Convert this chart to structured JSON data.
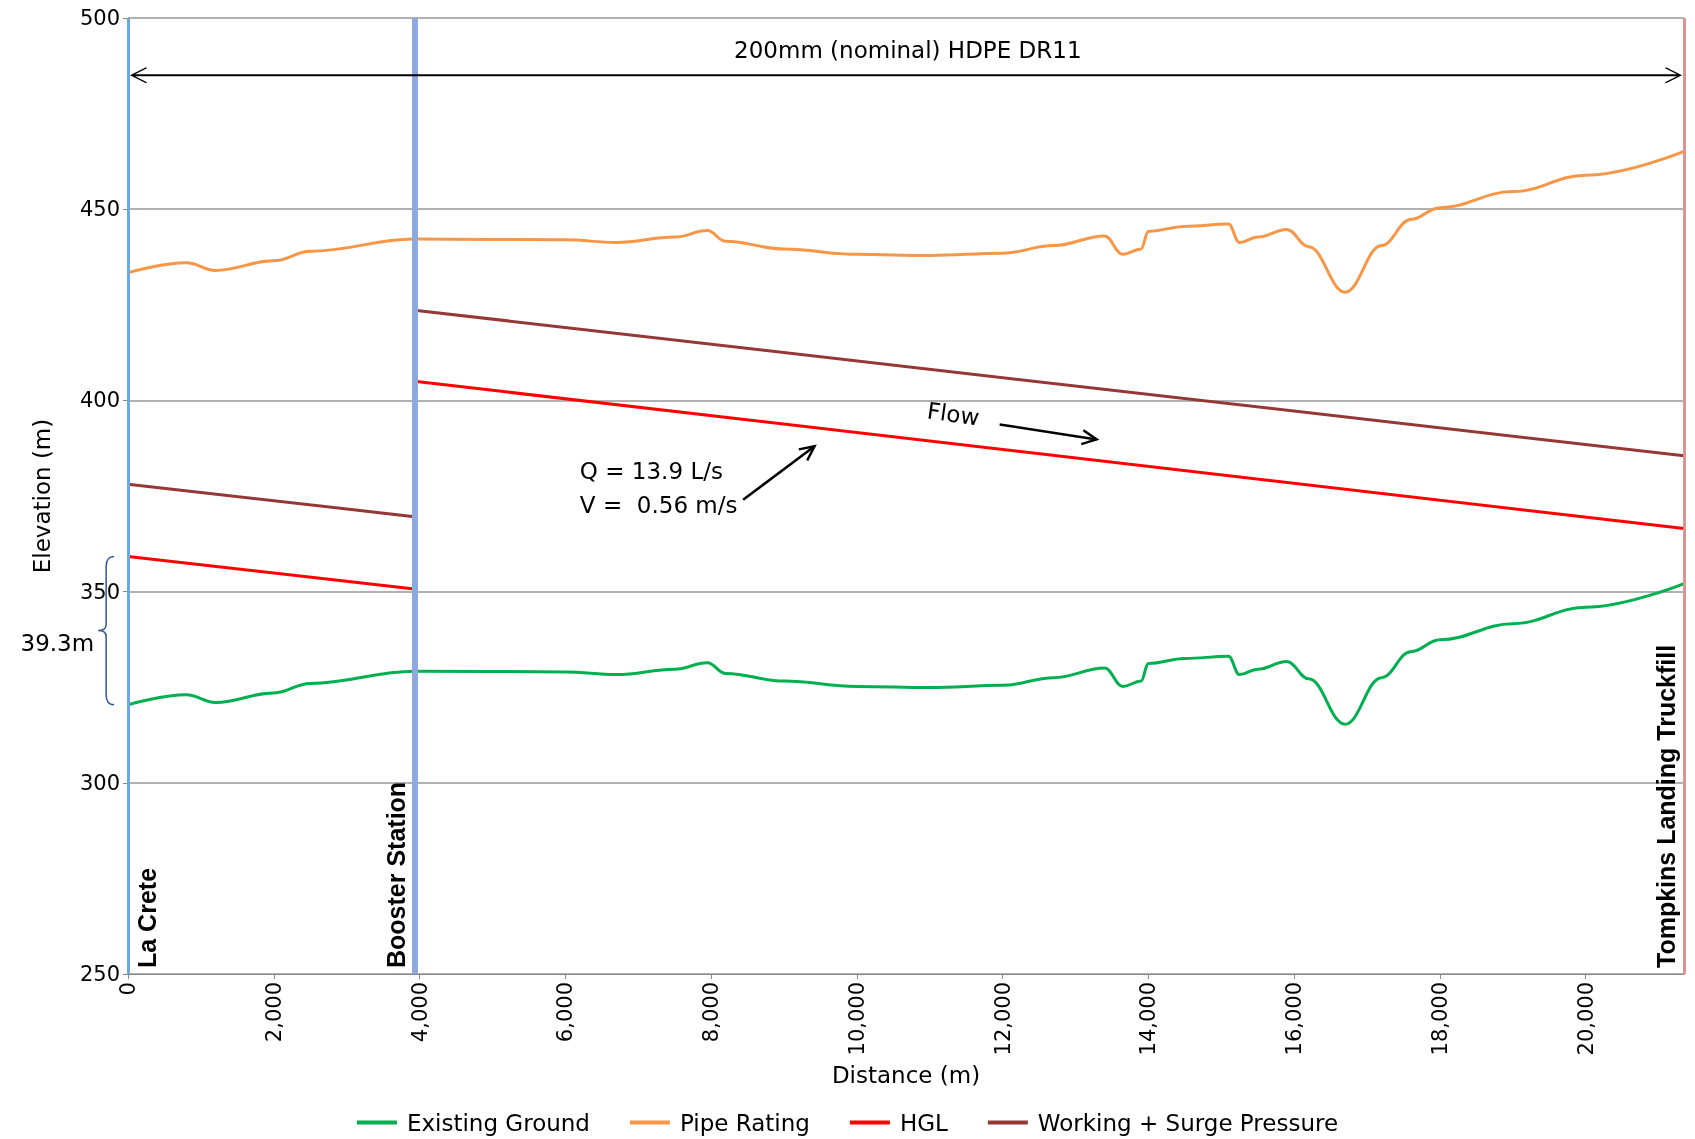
{
  "chart_data": {
    "type": "line",
    "xlabel": "Distance (m)",
    "ylabel": "Elevation (m)",
    "xlim": [
      0,
      21350
    ],
    "xticks": [
      {
        "value": 0,
        "label": "0"
      },
      {
        "value": 2000,
        "label": "2,000"
      },
      {
        "value": 4000,
        "label": "4,000"
      },
      {
        "value": 6000,
        "label": "6,000"
      },
      {
        "value": 8000,
        "label": "8,000"
      },
      {
        "value": 10000,
        "label": "10,000"
      },
      {
        "value": 12000,
        "label": "12,000"
      },
      {
        "value": 14000,
        "label": "14,000"
      },
      {
        "value": 16000,
        "label": "16,000"
      },
      {
        "value": 18000,
        "label": "18,000"
      },
      {
        "value": 20000,
        "label": "20,000"
      }
    ],
    "ylim": [
      250,
      500
    ],
    "yticks": [
      250,
      300,
      350,
      400,
      450,
      500
    ],
    "grid": "y",
    "legend": "bottom",
    "marker": "none",
    "line_style": "solid",
    "series": [
      {
        "name": "Existing Ground",
        "color": "#00b050",
        "x": [
          0,
          800,
          1200,
          2000,
          2500,
          3930,
          6000,
          6700,
          7500,
          7950,
          8200,
          9000,
          10000,
          11000,
          12000,
          12700,
          13400,
          13650,
          13900,
          14000,
          14500,
          15100,
          15250,
          15500,
          15900,
          16200,
          16700,
          17200,
          17600,
          18000,
          19000,
          20000,
          21350
        ],
        "values": [
          320.4,
          323,
          321,
          323.5,
          326,
          329.2,
          329,
          328.3,
          329.7,
          331.4,
          328.6,
          326.6,
          325.2,
          324.9,
          325.5,
          327.5,
          330,
          325.2,
          326.6,
          331.2,
          332.5,
          333.1,
          328.3,
          329.7,
          331.7,
          327.2,
          315.3,
          327.5,
          334.3,
          337.4,
          341.6,
          345.9,
          352.1
        ]
      },
      {
        "name": "Pipe Rating",
        "color": "#f79646",
        "x": [
          0,
          800,
          1200,
          2000,
          2500,
          3930,
          6000,
          6700,
          7500,
          7950,
          8200,
          9000,
          10000,
          11000,
          12000,
          12700,
          13400,
          13650,
          13900,
          14000,
          14500,
          15100,
          15250,
          15500,
          15900,
          16200,
          16700,
          17200,
          17600,
          18000,
          19000,
          20000,
          21350
        ],
        "values": [
          433.4,
          436,
          434,
          436.5,
          439,
          442.2,
          442,
          441.3,
          442.7,
          444.4,
          441.6,
          439.6,
          438.2,
          437.9,
          438.5,
          440.5,
          443,
          438.2,
          439.6,
          444.2,
          445.5,
          446.1,
          441.3,
          442.7,
          444.7,
          440.2,
          428.3,
          440.5,
          447.3,
          450.4,
          454.6,
          458.9,
          465.1
        ]
      },
      {
        "name": "HGL",
        "color": "#ff0000",
        "x": [
          0,
          3930,
          3930,
          21350
        ],
        "values": [
          359.2,
          350.7,
          405,
          366.5
        ]
      },
      {
        "name": "Working + Surge Pressure",
        "color": "#953735",
        "x": [
          0,
          3930,
          3930,
          21350
        ],
        "values": [
          378.1,
          369.6,
          423.6,
          385.5
        ]
      }
    ],
    "ref_lines": [
      {
        "axis": "x",
        "value": 0,
        "label": "La Crete",
        "color": "#6fa8dc"
      },
      {
        "axis": "x",
        "value": 3930,
        "label": "Booster Station",
        "color": "#8ea9db"
      },
      {
        "axis": "x",
        "value": 21350,
        "label": "Tompkins Landing Truckfill",
        "color": "#d99594"
      }
    ],
    "annotations": [
      "200mm (nominal) HDPE DR11",
      "Flow",
      "Q = 13.9 L/s\nV =  0.56 m/s",
      "39.3m"
    ]
  }
}
